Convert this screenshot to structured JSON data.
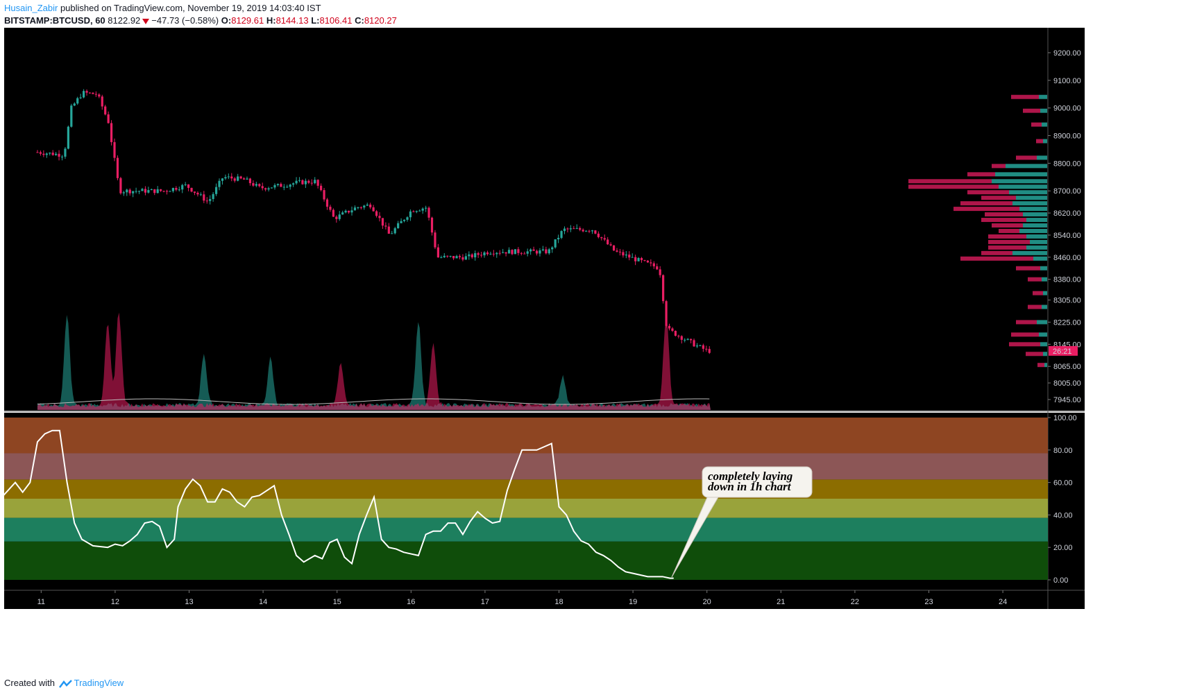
{
  "header": {
    "user": "Husain_Zabir",
    "published_text": "published on TradingView.com, November 19, 2019 14:03:40 IST",
    "symbol": "BITSTAMP:BTCUSD, 60",
    "last": "8122.92",
    "change": "−47.73 (−0.58%)",
    "o_label": "O:",
    "o_value": "8129.61",
    "h_label": "H:",
    "h_value": "8144.13",
    "l_label": "L:",
    "l_value": "8106.41",
    "c_label": "C:",
    "c_value": "8120.27"
  },
  "footer": {
    "created_with": "Created with",
    "brand": "TradingView"
  },
  "colors": {
    "up": "#26a69a",
    "down": "#e91e63",
    "bg": "#000000",
    "grid": "#2a2e39",
    "axis_text": "#d1d4dc",
    "price_badge": "#e91e63",
    "zone_high": "#8e4522",
    "zone_80": "#8c5656",
    "zone_60": "#8c6d00",
    "zone_50": "#99a33b",
    "zone_40": "#1d7f5e",
    "zone_low": "#0f4d0a"
  },
  "chart_data": [
    {
      "type": "candlestick",
      "title": "BITSTAMP:BTCUSD, 60",
      "x_ticks": [
        "11",
        "12",
        "13",
        "14",
        "15",
        "16",
        "17",
        "18",
        "19",
        "20",
        "21",
        "22",
        "23",
        "24"
      ],
      "y_ticks": [
        "7945.00",
        "8005.00",
        "8065.00",
        "8145.00",
        "8225.00",
        "8305.00",
        "8380.00",
        "8460.00",
        "8540.00",
        "8620.00",
        "8700.00",
        "8800.00",
        "8900.00",
        "9000.00",
        "9100.00",
        "9200.00"
      ],
      "ylim": [
        7900,
        9270
      ],
      "current_price_badge": "26:21",
      "price_path": [
        {
          "day": 10.5,
          "price": 8840
        },
        {
          "day": 10.85,
          "price": 8830
        },
        {
          "day": 10.95,
          "price": 9000
        },
        {
          "day": 11.1,
          "price": 9055
        },
        {
          "day": 11.3,
          "price": 9050
        },
        {
          "day": 11.45,
          "price": 8950
        },
        {
          "day": 11.6,
          "price": 8700
        },
        {
          "day": 11.8,
          "price": 8700
        },
        {
          "day": 12.2,
          "price": 8700
        },
        {
          "day": 12.5,
          "price": 8720
        },
        {
          "day": 12.8,
          "price": 8660
        },
        {
          "day": 13.0,
          "price": 8750
        },
        {
          "day": 13.3,
          "price": 8740
        },
        {
          "day": 13.5,
          "price": 8710
        },
        {
          "day": 13.8,
          "price": 8720
        },
        {
          "day": 14.0,
          "price": 8730
        },
        {
          "day": 14.25,
          "price": 8735
        },
        {
          "day": 14.5,
          "price": 8600
        },
        {
          "day": 14.8,
          "price": 8640
        },
        {
          "day": 15.0,
          "price": 8650
        },
        {
          "day": 15.25,
          "price": 8540
        },
        {
          "day": 15.55,
          "price": 8630
        },
        {
          "day": 15.75,
          "price": 8640
        },
        {
          "day": 15.9,
          "price": 8460
        },
        {
          "day": 16.3,
          "price": 8460
        },
        {
          "day": 16.6,
          "price": 8480
        },
        {
          "day": 17.0,
          "price": 8480
        },
        {
          "day": 17.4,
          "price": 8480
        },
        {
          "day": 17.6,
          "price": 8560
        },
        {
          "day": 18.0,
          "price": 8560
        },
        {
          "day": 18.3,
          "price": 8480
        },
        {
          "day": 18.7,
          "price": 8440
        },
        {
          "day": 18.9,
          "price": 8420
        },
        {
          "day": 19.0,
          "price": 8200
        },
        {
          "day": 19.2,
          "price": 8170
        },
        {
          "day": 19.4,
          "price": 8140
        },
        {
          "day": 19.55,
          "price": 8121
        }
      ],
      "volume_spikes": [
        {
          "day": 10.85,
          "color": "up",
          "level": 0.95
        },
        {
          "day": 11.4,
          "color": "down",
          "level": 0.85
        },
        {
          "day": 11.55,
          "color": "down",
          "level": 1.0
        },
        {
          "day": 12.7,
          "color": "up",
          "level": 0.55
        },
        {
          "day": 13.6,
          "color": "up",
          "level": 0.5
        },
        {
          "day": 14.55,
          "color": "down",
          "level": 0.45
        },
        {
          "day": 15.6,
          "color": "up",
          "level": 0.9
        },
        {
          "day": 15.8,
          "color": "down",
          "level": 0.65
        },
        {
          "day": 17.55,
          "color": "up",
          "level": 0.3
        },
        {
          "day": 18.95,
          "color": "down",
          "level": 0.95
        }
      ],
      "volume_profile_levels": [
        {
          "price": 9040,
          "up": 12,
          "down": 40
        },
        {
          "price": 8990,
          "up": 10,
          "down": 25
        },
        {
          "price": 8940,
          "up": 8,
          "down": 15
        },
        {
          "price": 8880,
          "up": 6,
          "down": 10
        },
        {
          "price": 8820,
          "up": 15,
          "down": 30
        },
        {
          "price": 8790,
          "up": 60,
          "down": 20
        },
        {
          "price": 8760,
          "up": 75,
          "down": 40
        },
        {
          "price": 8735,
          "up": 80,
          "down": 120
        },
        {
          "price": 8715,
          "up": 70,
          "down": 130
        },
        {
          "price": 8695,
          "up": 55,
          "down": 60
        },
        {
          "price": 8675,
          "up": 45,
          "down": 50
        },
        {
          "price": 8655,
          "up": 50,
          "down": 75
        },
        {
          "price": 8635,
          "up": 40,
          "down": 95
        },
        {
          "price": 8615,
          "up": 35,
          "down": 55
        },
        {
          "price": 8595,
          "up": 30,
          "down": 65
        },
        {
          "price": 8575,
          "up": 35,
          "down": 45
        },
        {
          "price": 8555,
          "up": 40,
          "down": 30
        },
        {
          "price": 8535,
          "up": 30,
          "down": 55
        },
        {
          "price": 8515,
          "up": 25,
          "down": 60
        },
        {
          "price": 8495,
          "up": 30,
          "down": 55
        },
        {
          "price": 8475,
          "up": 50,
          "down": 45
        },
        {
          "price": 8455,
          "up": 20,
          "down": 105
        },
        {
          "price": 8420,
          "up": 10,
          "down": 35
        },
        {
          "price": 8380,
          "up": 8,
          "down": 20
        },
        {
          "price": 8330,
          "up": 6,
          "down": 15
        },
        {
          "price": 8280,
          "up": 8,
          "down": 20
        },
        {
          "price": 8225,
          "up": 15,
          "down": 30
        },
        {
          "price": 8180,
          "up": 12,
          "down": 40
        },
        {
          "price": 8145,
          "up": 10,
          "down": 45
        },
        {
          "price": 8110,
          "up": 6,
          "down": 25
        },
        {
          "price": 8070,
          "up": 4,
          "down": 10
        }
      ]
    },
    {
      "type": "line",
      "y_ticks": [
        "0.00",
        "20.00",
        "40.00",
        "60.00",
        "80.00",
        "100.00"
      ],
      "ylim": [
        0,
        100
      ],
      "zones": [
        {
          "from": 78,
          "to": 100,
          "color": "zone_high"
        },
        {
          "from": 61.8,
          "to": 78,
          "color": "zone_80"
        },
        {
          "from": 50,
          "to": 61.8,
          "color": "zone_60"
        },
        {
          "from": 38.2,
          "to": 50,
          "color": "zone_50"
        },
        {
          "from": 23.6,
          "to": 38.2,
          "color": "zone_40"
        },
        {
          "from": 0,
          "to": 23.6,
          "color": "zone_low"
        }
      ],
      "annotation": "completely laying\ndown in 1h chart",
      "series": [
        {
          "x": [
            10.45,
            10.55,
            10.65,
            10.75,
            10.85,
            10.95,
            11.05,
            11.15,
            11.25,
            11.35,
            11.45,
            11.55,
            11.7,
            11.9,
            12.0,
            12.1,
            12.2,
            12.3,
            12.4,
            12.5,
            12.6,
            12.7,
            12.8,
            12.85,
            12.95,
            13.05,
            13.15,
            13.25,
            13.35,
            13.45,
            13.55,
            13.65,
            13.75,
            13.85,
            13.95,
            14.05,
            14.15,
            14.25,
            14.35,
            14.45,
            14.55,
            14.7,
            14.8,
            14.9,
            15.0,
            15.1,
            15.2,
            15.3,
            15.4,
            15.5,
            15.6,
            15.7,
            15.8,
            15.9,
            16.0,
            16.1,
            16.2,
            16.3,
            16.4,
            16.5,
            16.6,
            16.7,
            16.8,
            16.9,
            17.0,
            17.1,
            17.2,
            17.3,
            17.4,
            17.5,
            17.6,
            17.7,
            17.8,
            17.9,
            18.0,
            18.1,
            18.2,
            18.3,
            18.4,
            18.5,
            18.6,
            18.7,
            18.8,
            18.9,
            19.0,
            19.1,
            19.2,
            19.3,
            19.4,
            19.5,
            19.55
          ],
          "y": [
            50,
            55,
            60,
            54,
            60,
            85,
            90,
            92,
            92,
            60,
            35,
            25,
            21,
            20,
            22,
            21,
            24,
            28,
            35,
            36,
            33,
            20,
            25,
            45,
            56,
            62,
            58,
            48,
            48,
            56,
            54,
            48,
            45,
            51,
            52,
            55,
            58,
            40,
            28,
            15,
            11,
            15,
            13,
            23,
            25,
            14,
            10,
            28,
            40,
            51,
            25,
            20,
            19,
            17,
            16,
            15,
            28,
            30,
            30,
            35,
            35,
            28,
            36,
            42,
            38,
            35,
            36,
            55,
            68,
            80,
            80,
            80,
            82,
            84,
            45,
            40,
            30,
            24,
            22,
            17,
            15,
            12,
            8,
            5,
            4,
            3,
            2,
            2,
            2,
            1,
            1
          ]
        }
      ]
    }
  ]
}
